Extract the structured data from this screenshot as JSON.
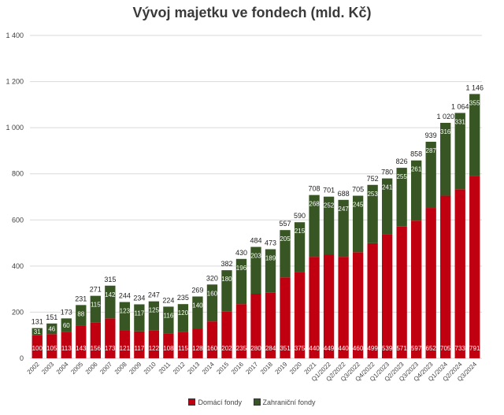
{
  "colors": {
    "domestic": "#c00010",
    "foreign": "#375623",
    "grid": "#d9d9d9",
    "text": "#404040"
  },
  "chart_data": {
    "type": "bar",
    "stacked": true,
    "title": "Vývoj majetku ve fondech (mld. Kč)",
    "ylim": [
      0,
      1400
    ],
    "yticks": [
      0,
      200,
      400,
      600,
      800,
      1000,
      1200,
      1400
    ],
    "ytick_labels": [
      "0",
      "200",
      "400",
      "600",
      "800",
      "1 000",
      "1 200",
      "1 400"
    ],
    "grid": true,
    "legend_position": "bottom",
    "categories": [
      "2002",
      "2003",
      "2004",
      "2005",
      "2006",
      "2007",
      "2008",
      "2009",
      "2010",
      "2011",
      "2012",
      "2013",
      "2014",
      "2015",
      "2016",
      "2017",
      "2018",
      "2019",
      "2020",
      "2021",
      "Q1/2022",
      "Q2/2022",
      "Q3/2022",
      "Q4/2022",
      "Q1/2023",
      "Q2/2023",
      "Q3/2023",
      "Q4/2023",
      "Q1/2024",
      "Q2/2024",
      "Q3/2024"
    ],
    "series": [
      {
        "name": "Domácí fondy",
        "values": [
          100,
          105,
          113,
          143,
          156,
          173,
          121,
          117,
          122,
          108,
          115,
          128,
          160,
          202,
          235,
          280,
          284,
          351,
          375,
          440,
          449,
          440,
          460,
          499,
          539,
          571,
          597,
          652,
          705,
          733,
          791
        ]
      },
      {
        "name": "Zahraniční fondy",
        "values": [
          31,
          46,
          60,
          88,
          115,
          142,
          123,
          117,
          125,
          116,
          120,
          140,
          160,
          180,
          196,
          203,
          189,
          205,
          215,
          268,
          252,
          247,
          245,
          253,
          241,
          255,
          261,
          287,
          316,
          331,
          355
        ]
      }
    ],
    "totals": [
      "131",
      "151",
      "173",
      "231",
      "271",
      "315",
      "244",
      "234",
      "247",
      "224",
      "235",
      "269",
      "320",
      "382",
      "430",
      "484",
      "473",
      "557",
      "590",
      "708",
      "701",
      "688",
      "705",
      "752",
      "780",
      "826",
      "858",
      "939",
      "1 020",
      "1 064",
      "1 146"
    ]
  }
}
